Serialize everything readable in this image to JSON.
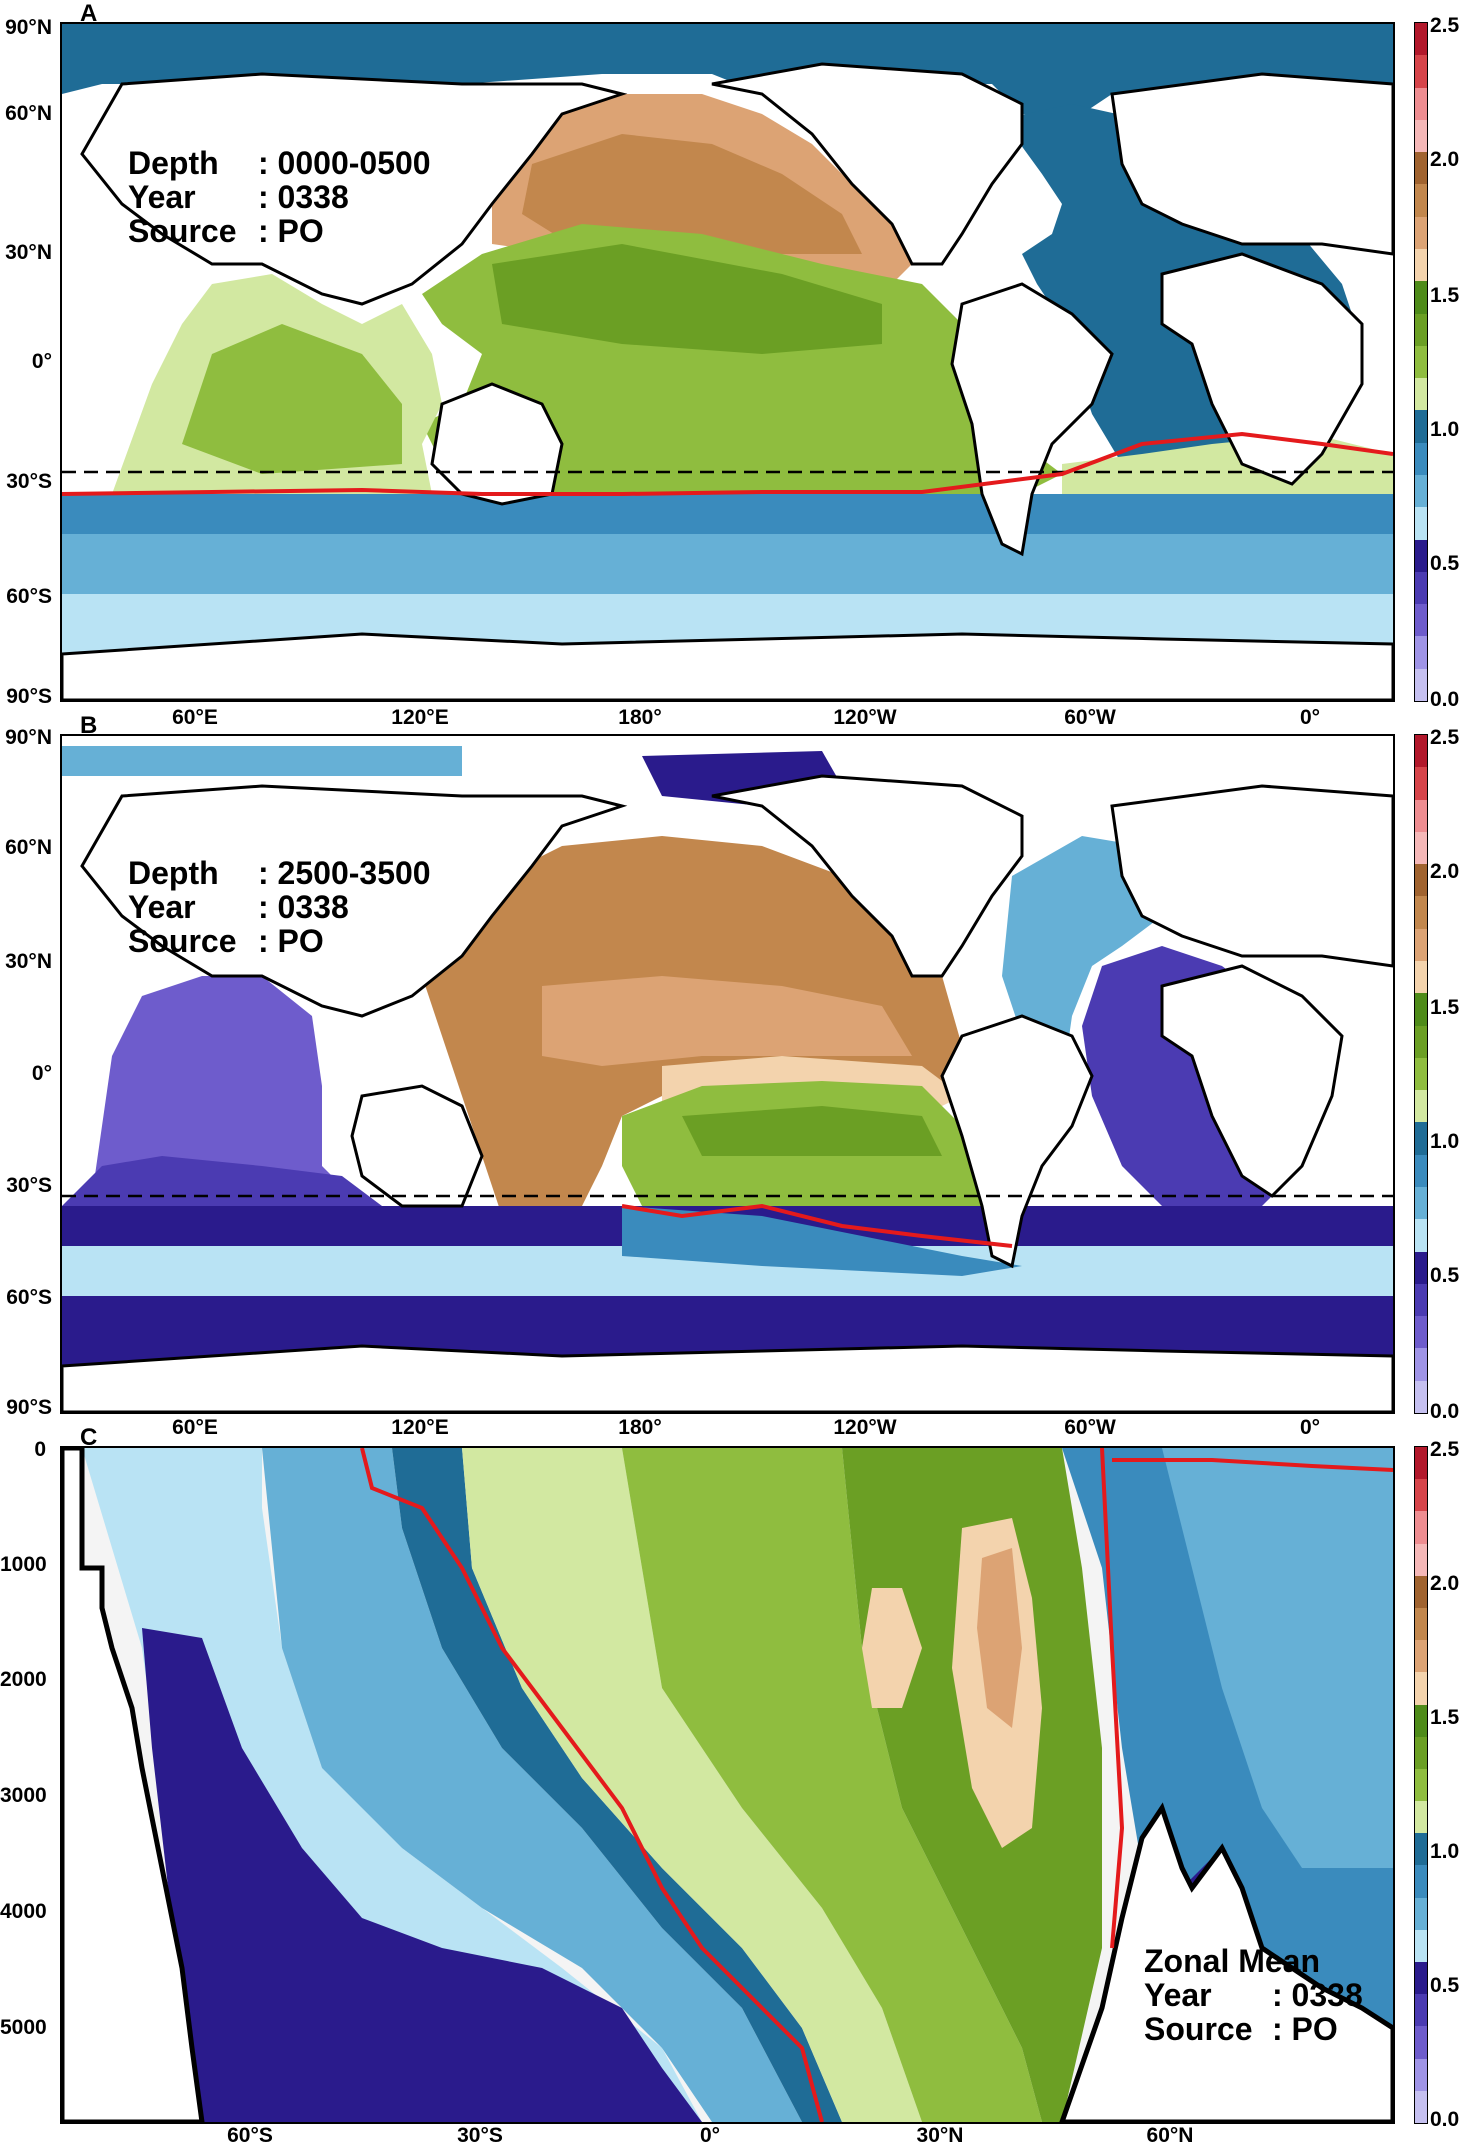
{
  "colorbar": {
    "ticks": [
      "2.5",
      "2.0",
      "1.5",
      "1.0",
      "0.5",
      "0.0"
    ],
    "colors": [
      "#b2182b",
      "#d6444a",
      "#ee8d91",
      "#f5b8b8",
      "#a0632f",
      "#c2874d",
      "#dca374",
      "#f3d3ad",
      "#4e8b19",
      "#6b9f24",
      "#8fbd3f",
      "#d2e8a1",
      "#1f6c96",
      "#3a8bbd",
      "#66b0d6",
      "#b9e3f4",
      "#2a1b8c",
      "#4b3bb2",
      "#6e5ccc",
      "#9f94e6",
      "#c5c0f0"
    ]
  },
  "panels": [
    {
      "letter": "A",
      "info": {
        "depth_key": "Depth",
        "depth_val": ": 0000-0500",
        "year_key": "Year",
        "year_val": ": 0338",
        "source_key": "Source",
        "source_val": ": PO"
      },
      "lat_labels": [
        "90°N",
        "60°N",
        "30°N",
        "0°",
        "30°S",
        "60°S",
        "90°S"
      ],
      "lon_labels": [
        "60°E",
        "120°E",
        "180°",
        "120°W",
        "60°W",
        "0°"
      ]
    },
    {
      "letter": "B",
      "info": {
        "depth_key": "Depth",
        "depth_val": ": 2500-3500",
        "year_key": "Year",
        "year_val": ": 0338",
        "source_key": "Source",
        "source_val": ": PO"
      },
      "lat_labels": [
        "90°N",
        "60°N",
        "30°N",
        "0°",
        "30°S",
        "60°S",
        "90°S"
      ],
      "lon_labels": [
        "60°E",
        "120°E",
        "180°",
        "120°W",
        "60°W",
        "0°"
      ]
    },
    {
      "letter": "C",
      "info": {
        "title": "Zonal Mean",
        "year_key": "Year",
        "year_val": ": 0338",
        "source_key": "Source",
        "source_val": ": PO"
      },
      "depth_labels": [
        "0",
        "1000",
        "2000",
        "3000",
        "4000",
        "5000"
      ],
      "lat_labels": [
        "60°S",
        "30°S",
        "0°",
        "30°N",
        "60°N"
      ]
    }
  ]
}
